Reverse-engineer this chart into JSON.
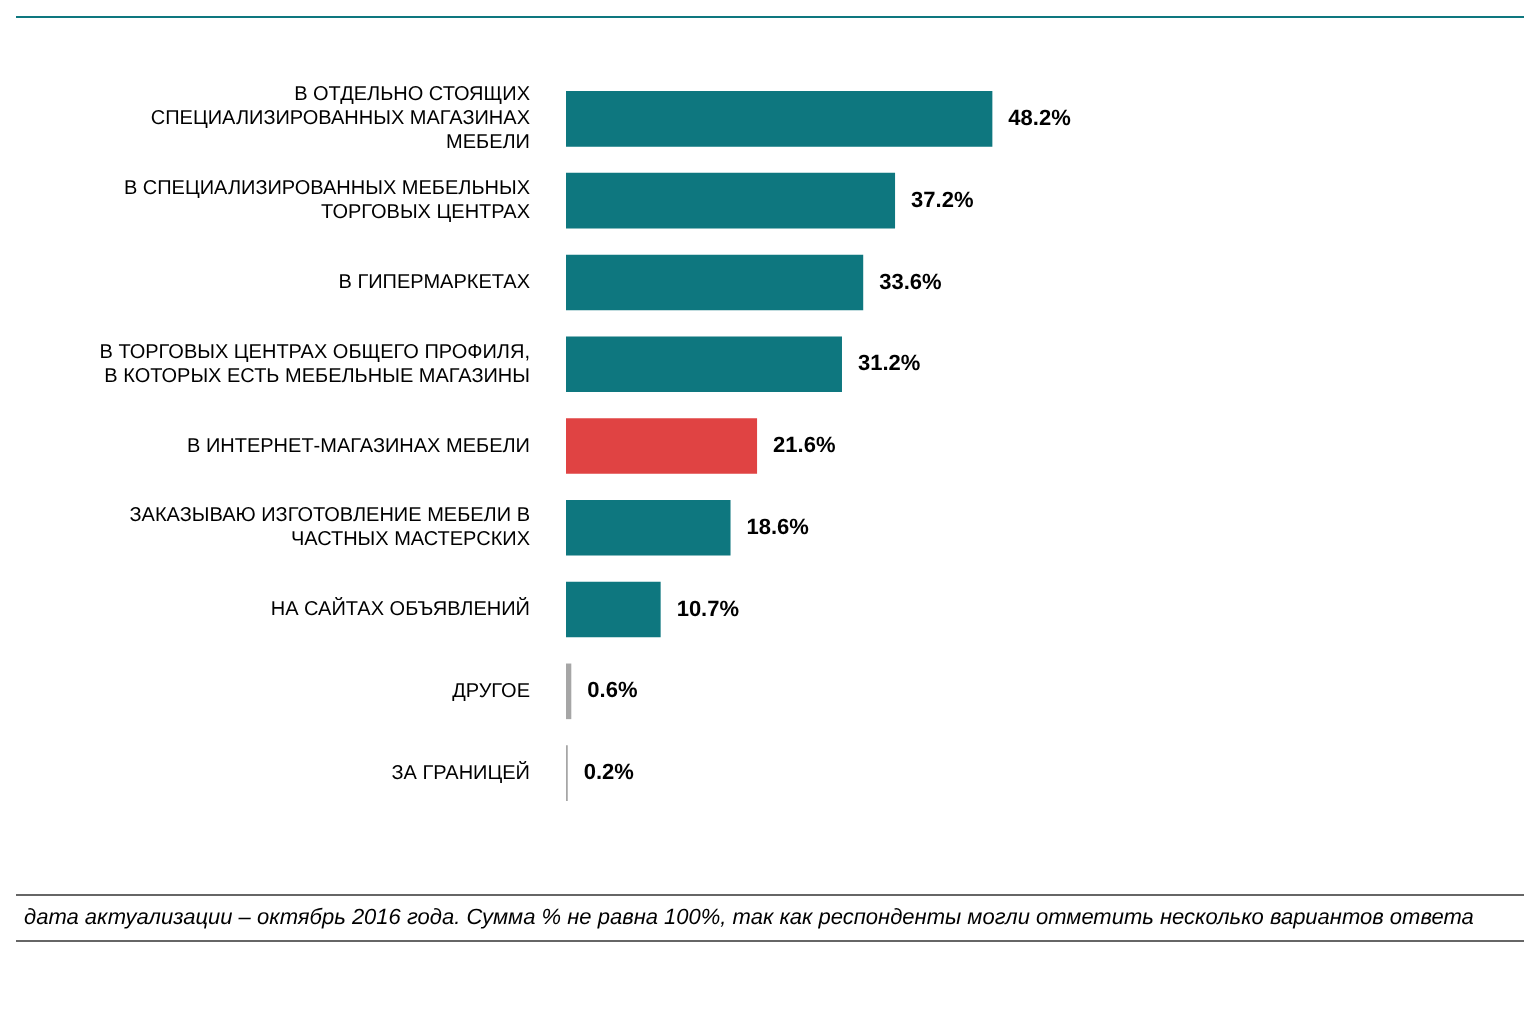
{
  "chart_data": {
    "type": "bar",
    "orientation": "horizontal",
    "categories": [
      "В ОТДЕЛЬНО СТОЯЩИХ СПЕЦИАЛИЗИРОВАННЫХ МАГАЗИНАХ МЕБЕЛИ",
      "В СПЕЦИАЛИЗИРОВАННЫХ МЕБЕЛЬНЫХ ТОРГОВЫХ ЦЕНТРАХ",
      "В ГИПЕРМАРКЕТАХ",
      "В ТОРГОВЫХ ЦЕНТРАХ ОБЩЕГО ПРОФИЛЯ, В КОТОРЫХ ЕСТЬ МЕБЕЛЬНЫЕ МАГАЗИНЫ",
      "В ИНТЕРНЕТ-МАГАЗИНАХ МЕБЕЛИ",
      "ЗАКАЗЫВАЮ ИЗГОТОВЛЕНИЕ МЕБЕЛИ В ЧАСТНЫХ МАСТЕРСКИХ",
      "НА САЙТАХ ОБЪЯВЛЕНИЙ",
      "ДРУГОЕ",
      "ЗА ГРАНИЦЕЙ"
    ],
    "values": [
      48.2,
      37.2,
      33.6,
      31.2,
      21.6,
      18.6,
      10.7,
      0.6,
      0.2
    ],
    "colors": [
      "#0e777f",
      "#0e777f",
      "#0e777f",
      "#0e777f",
      "#e04343",
      "#0e777f",
      "#0e777f",
      "#a6a6a6",
      "#a6a6a6"
    ],
    "value_labels": [
      "48.2%",
      "37.2%",
      "33.6%",
      "31.2%",
      "21.6%",
      "18.6%",
      "10.7%",
      "0.6%",
      "0.2%"
    ],
    "annotations": [
      "дата актуализации – октябрь 2016 года. Сумма % не равна 100%, так как респонденты могли отметить несколько вариантов ответа"
    ]
  }
}
